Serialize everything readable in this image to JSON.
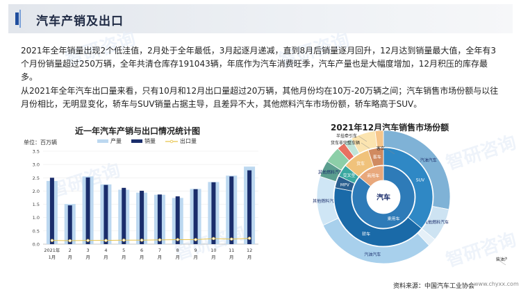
{
  "header": {
    "title": "汽车产销及出口"
  },
  "paragraphs": [
    "2021年全年销量出现2个低洼值，2月处于全年最低，3月起逐月递减，直到8月后销量逐月回升，12月达到销量最大值，全年有3个月份销量超过250万辆，全年共清仓库存191043辆，年底作为汽车消费旺季，汽车产量也是大幅度增加，12月积压的库存最多。",
    "从2021年全年汽车出口量来看，只有10月和12月出口量超过20万辆，其他月份均在10万-20万辆之间；汽车销售市场份额与以往月份相比，无明显变化，轿车与SUV销量占据主导，且差异不大，其他燃料汽车市场份额，轿车略高于SUV。"
  ],
  "watermark": "智研咨询",
  "colors": {
    "production": "#bcd8f0",
    "sales": "#1a2d6b",
    "export": "#e8c34a",
    "header_accent": "#1f4e9e"
  },
  "chart_data": [
    {
      "type": "bar",
      "title": "近一年汽车产销与出口情况统计图",
      "unit_label": "单位：百万辆",
      "categories": [
        [
          "2021年",
          "1月"
        ],
        [
          "2",
          "月"
        ],
        [
          "3",
          "月"
        ],
        [
          "4",
          "月"
        ],
        [
          "5",
          "月"
        ],
        [
          "6",
          "月"
        ],
        [
          "7",
          "月"
        ],
        [
          "8",
          "月"
        ],
        [
          "9",
          "月"
        ],
        [
          "10",
          "月"
        ],
        [
          "11",
          "月"
        ],
        [
          "12",
          "月"
        ]
      ],
      "series": [
        {
          "name": "产量",
          "kind": "bar",
          "values": [
            2.38,
            1.51,
            2.55,
            2.25,
            2.05,
            1.94,
            1.86,
            1.74,
            2.08,
            2.34,
            2.58,
            2.92
          ]
        },
        {
          "name": "销量",
          "kind": "bar",
          "values": [
            2.5,
            1.46,
            2.51,
            2.23,
            2.12,
            2.01,
            1.87,
            1.8,
            2.07,
            2.33,
            2.55,
            2.78
          ]
        },
        {
          "name": "出口量",
          "kind": "line",
          "values": [
            0.14,
            0.13,
            0.14,
            0.14,
            0.15,
            0.15,
            0.16,
            0.17,
            0.17,
            0.21,
            0.19,
            0.22
          ]
        }
      ],
      "yticks": [
        "0.0",
        "0.5",
        "1.0",
        "1.5",
        "2.0",
        "2.5",
        "3.0",
        "3.5"
      ],
      "ylim": [
        0,
        3.5
      ],
      "legend_position": "top"
    },
    {
      "type": "pie",
      "title": "2021年12月汽车销售市场份额",
      "center_label": "汽车",
      "inner_ring": [
        {
          "label": "乘用车",
          "value": 86,
          "color": "#2e7bb8"
        },
        {
          "label": "商用车",
          "value": 14,
          "color": "#e8a87c"
        }
      ],
      "middle_ring": [
        {
          "label": "SUV",
          "value": 36,
          "color": "#2f88c5"
        },
        {
          "label": "轿车",
          "value": 42,
          "color": "#1a6aa8"
        },
        {
          "label": "MPV",
          "value": 4,
          "color": "#2a5f8f"
        },
        {
          "label": "交叉型",
          "value": 4,
          "color": "#3aa8a0"
        },
        {
          "label": "货车",
          "value": 9,
          "color": "#f0c27b"
        },
        {
          "label": "客车",
          "value": 5,
          "color": "#d08a60"
        }
      ],
      "outer_ring": [
        {
          "label": "汽油汽车",
          "value": 28,
          "color": "#7fb2d6"
        },
        {
          "label": "其他燃料汽车",
          "value": 8,
          "color": "#cde3f2"
        },
        {
          "label": "柴油汽车",
          "value": 2,
          "color": "#e5f0f8"
        },
        {
          "label": "汽油汽车",
          "value": 30,
          "color": "#a8d0ec"
        },
        {
          "label": "其他燃料汽车",
          "value": 12,
          "color": "#cfe6f5"
        },
        {
          "label": "其他燃料汽车",
          "value": 4,
          "color": "#5b9e8f"
        },
        {
          "label": "",
          "value": 4,
          "color": "#8ccfa8"
        },
        {
          "label": "",
          "value": 2,
          "color": "#e87060"
        },
        {
          "label": "",
          "value": 2,
          "color": "#c0e4d8"
        },
        {
          "label": "",
          "value": 6,
          "color": "#fbe4b0"
        },
        {
          "label": "",
          "value": 2,
          "color": "#f6c58a"
        }
      ],
      "callouts": [
        "半挂牵引车",
        "货车非完整车辆",
        "客车",
        "柴油汽车"
      ]
    }
  ],
  "footer": {
    "source": "资料来源：中国汽车工业协会",
    "site": "www.chyxx.com"
  }
}
